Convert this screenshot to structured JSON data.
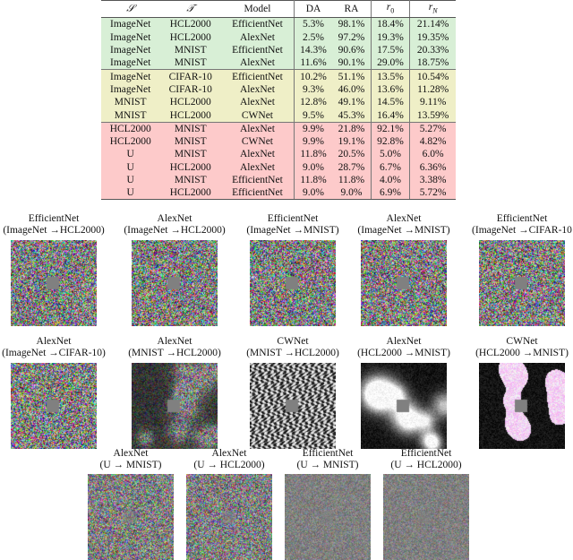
{
  "table": {
    "headers": [
      "S",
      "T",
      "Model",
      "DA",
      "RA",
      "r0",
      "rN"
    ],
    "groups": [
      {
        "color": "#d8efd6",
        "rows": [
          [
            "ImageNet",
            "HCL2000",
            "EfficientNet",
            "5.3%",
            "98.1%",
            "18.4%",
            "21.14%"
          ],
          [
            "ImageNet",
            "HCL2000",
            "AlexNet",
            "2.5%",
            "97.2%",
            "19.3%",
            "19.35%"
          ],
          [
            "ImageNet",
            "MNIST",
            "EfficientNet",
            "14.3%",
            "90.6%",
            "17.5%",
            "20.33%"
          ],
          [
            "ImageNet",
            "MNIST",
            "AlexNet",
            "11.6%",
            "90.1%",
            "29.0%",
            "18.75%"
          ]
        ]
      },
      {
        "color": "#efefc7",
        "rows": [
          [
            "ImageNet",
            "CIFAR-10",
            "EfficientNet",
            "10.2%",
            "51.1%",
            "13.5%",
            "10.54%"
          ],
          [
            "ImageNet",
            "CIFAR-10",
            "AlexNet",
            "9.3%",
            "46.0%",
            "13.6%",
            "11.28%"
          ],
          [
            "MNIST",
            "HCL2000",
            "AlexNet",
            "12.8%",
            "49.1%",
            "14.5%",
            "9.11%"
          ],
          [
            "MNIST",
            "HCL2000",
            "CWNet",
            "9.5%",
            "45.3%",
            "16.4%",
            "13.59%"
          ]
        ]
      },
      {
        "color": "#fdcaca",
        "rows": [
          [
            "HCL2000",
            "MNIST",
            "AlexNet",
            "9.9%",
            "21.8%",
            "92.1%",
            "5.27%"
          ],
          [
            "HCL2000",
            "MNIST",
            "CWNet",
            "9.9%",
            "19.1%",
            "92.8%",
            "4.82%"
          ],
          [
            "U",
            "MNIST",
            "AlexNet",
            "11.8%",
            "20.5%",
            "5.0%",
            "6.0%"
          ],
          [
            "U",
            "HCL2000",
            "AlexNet",
            "9.0%",
            "28.7%",
            "6.7%",
            "6.36%"
          ],
          [
            "U",
            "MNIST",
            "EfficientNet",
            "11.8%",
            "11.8%",
            "4.0%",
            "3.38%"
          ],
          [
            "U",
            "HCL2000",
            "EfficientNet",
            "9.0%",
            "9.0%",
            "6.9%",
            "5.72%"
          ]
        ]
      }
    ]
  },
  "figures": [
    {
      "model": "EfficientNet",
      "transfer": "(ImageNet →HCL2000)",
      "style": "color"
    },
    {
      "model": "AlexNet",
      "transfer": "(ImageNet →HCL2000)",
      "style": "color"
    },
    {
      "model": "EfficientNet",
      "transfer": "(ImageNet →MNIST)",
      "style": "color"
    },
    {
      "model": "AlexNet",
      "transfer": "(ImageNet →MNIST)",
      "style": "color"
    },
    {
      "model": "EfficientNet",
      "transfer": "(ImageNet →CIFAR-10",
      "style": "color"
    },
    {
      "model": "AlexNet",
      "transfer": "(ImageNet →CIFAR-10)",
      "style": "color"
    },
    {
      "model": "AlexNet",
      "transfer": "(MNIST →HCL2000)",
      "style": "blobcolor"
    },
    {
      "model": "CWNet",
      "transfer": "(MNIST →HCL2000)",
      "style": "emboss"
    },
    {
      "model": "AlexNet",
      "transfer": "(HCL2000 →MNIST)",
      "style": "dark"
    },
    {
      "model": "CWNet",
      "transfer": "(HCL2000 →MNIST)",
      "style": "pink"
    },
    {
      "model": "AlexNet",
      "transfer": "(U → MNIST)",
      "style": "noise"
    },
    {
      "model": "AlexNet",
      "transfer": "(U → HCL2000)",
      "style": "noise"
    },
    {
      "model": "EfficientNet",
      "transfer": "(U → MNIST)",
      "style": "muted"
    },
    {
      "model": "EfficientNet",
      "transfer": "(U → HCL2000)",
      "style": "muted"
    }
  ]
}
